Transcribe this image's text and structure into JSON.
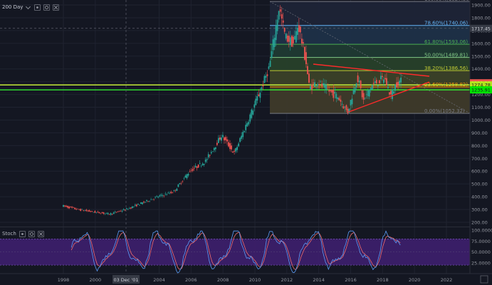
{
  "top_toolbar": {
    "interval_label": "200 Day"
  },
  "stoch_toolbar": {
    "label": "Stoch"
  },
  "crosshair_date": "03 Dec '01",
  "price_axis_ticks": [
    "1900.00",
    "1800.00",
    "1700.00",
    "1600.00",
    "1500.00",
    "1400.00",
    "1300.00",
    "1200.00",
    "1100.00",
    "1000.00",
    "900.00",
    "800.00",
    "700.00",
    "600.00",
    "500.00",
    "400.00",
    "300.00",
    "200.00"
  ],
  "stoch_axis_ticks": [
    "100.0000",
    "75.0000",
    "50.0000",
    "25.0000"
  ],
  "time_axis_ticks": [
    "1998",
    "2000",
    "2004",
    "2006",
    "2008",
    "2010",
    "2012",
    "2014",
    "2016",
    "2018",
    "2020",
    "2022"
  ],
  "fib_levels": [
    {
      "label": "100.00%(1927.30)",
      "price": 1927.3,
      "color": "#787b86"
    },
    {
      "label": "78.60%(1740.06)",
      "price": 1740.06,
      "color": "#64b5f6"
    },
    {
      "label": "61.80%(1593.06)",
      "price": 1593.06,
      "color": "#4caf50"
    },
    {
      "label": "50.00%(1489.81)",
      "price": 1489.81,
      "color": "#81c784"
    },
    {
      "label": "38.20%(1386.56)",
      "price": 1386.56,
      "color": "#c0ca33"
    },
    {
      "label": "23.60%(1258.82)",
      "price": 1258.82,
      "color": "#ff9800"
    },
    {
      "label": "0.00%(1052.32)",
      "price": 1052.32,
      "color": "#787b86"
    }
  ],
  "price_tags": [
    {
      "label": "1717.45",
      "price": 1717.45,
      "bg": "#363a45",
      "fg": "#d1d4dc"
    },
    {
      "label": "1291.39",
      "price": 1291.39,
      "bg": "#ef5350",
      "fg": "#ffffff"
    },
    {
      "label": "1274.78",
      "price": 1274.78,
      "bg": "#b5e61d",
      "fg": "#131722"
    },
    {
      "label": "1235.91",
      "price": 1235.91,
      "bg": "#00e600",
      "fg": "#131722"
    }
  ],
  "horizontal_lines": [
    {
      "price": 1274.78,
      "color": "#d4ff3a"
    },
    {
      "price": 1235.91,
      "color": "#33ff33"
    }
  ],
  "colors": {
    "up": "#26a69a",
    "down": "#ef5350",
    "stoch_k": "#5b9cf6",
    "stoch_d": "#ef6c6c",
    "stoch_band": "#3d1f6e"
  }
}
